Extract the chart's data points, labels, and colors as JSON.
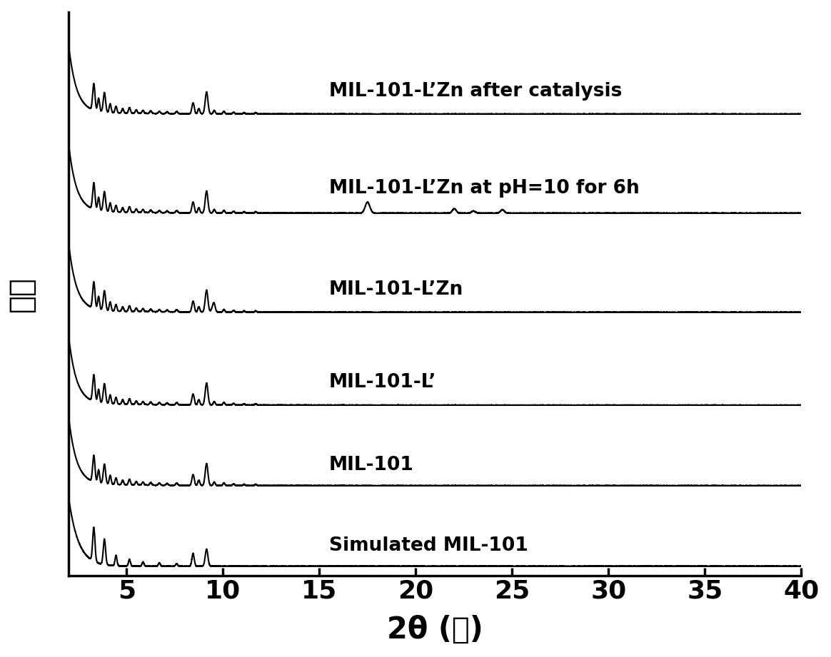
{
  "xlabel": "2θ (度)",
  "ylabel": "强度",
  "xlim": [
    2,
    40
  ],
  "xticks": [
    5,
    10,
    15,
    20,
    25,
    30,
    35,
    40
  ],
  "background_color": "#ffffff",
  "line_color": "#000000",
  "labels": [
    "Simulated MIL-101",
    "MIL-101",
    "MIL-101-L’",
    "MIL-101-L’Zn",
    "MIL-101-L’Zn at pH=10 for 6h",
    "MIL-101-L’Zn after catalysis"
  ],
  "offsets": [
    0.0,
    1.3,
    2.6,
    4.1,
    5.7,
    7.3
  ],
  "xlabel_fontsize": 30,
  "ylabel_fontsize": 30,
  "tick_fontsize": 26,
  "label_fontsize": 19,
  "scale": 1.1
}
